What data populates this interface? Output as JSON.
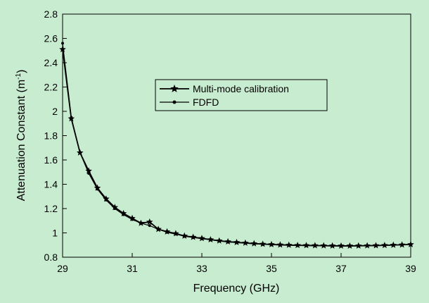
{
  "chart_data": {
    "type": "line",
    "title": "",
    "xlabel": "Frequency (GHz)",
    "ylabel": "Attenuation Constant (m",
    "ylabel_superscript": "-1",
    "ylabel_suffix": ")",
    "xlim": [
      29,
      39
    ],
    "ylim": [
      0.8,
      2.8
    ],
    "xticks": [
      29,
      31,
      33,
      35,
      37,
      39
    ],
    "yticks": [
      0.8,
      1,
      1.2,
      1.4,
      1.6,
      1.8,
      2,
      2.2,
      2.4,
      2.6,
      2.8
    ],
    "grid": false,
    "legend_position": "center",
    "series": [
      {
        "name": "Multi-mode calibration",
        "marker": "star",
        "x": [
          29.0,
          29.25,
          29.5,
          29.75,
          30.0,
          30.25,
          30.5,
          30.75,
          31.0,
          31.25,
          31.5,
          31.75,
          32.0,
          32.25,
          32.5,
          32.75,
          33.0,
          33.25,
          33.5,
          33.75,
          34.0,
          34.25,
          34.5,
          34.75,
          35.0,
          35.25,
          35.5,
          35.75,
          36.0,
          36.25,
          36.5,
          36.75,
          37.0,
          37.25,
          37.5,
          37.75,
          38.0,
          38.25,
          38.5,
          38.75,
          39.0
        ],
        "y": [
          2.51,
          1.94,
          1.66,
          1.51,
          1.37,
          1.28,
          1.21,
          1.16,
          1.12,
          1.08,
          1.09,
          1.03,
          1.01,
          0.995,
          0.975,
          0.965,
          0.955,
          0.945,
          0.935,
          0.928,
          0.922,
          0.917,
          0.912,
          0.908,
          0.905,
          0.902,
          0.9,
          0.898,
          0.897,
          0.896,
          0.895,
          0.894,
          0.893,
          0.893,
          0.894,
          0.895,
          0.896,
          0.898,
          0.9,
          0.902,
          0.905
        ]
      },
      {
        "name": "FDFD",
        "marker": "dot",
        "x": [
          29.0,
          29.25,
          29.5,
          29.75,
          30.0,
          30.25,
          30.5,
          30.75,
          31.0,
          31.25,
          31.5,
          31.75,
          32.0,
          32.25,
          32.5,
          32.75,
          33.0,
          33.25,
          33.5,
          33.75,
          34.0,
          34.25,
          34.5,
          34.75,
          35.0,
          35.25,
          35.5,
          35.75,
          36.0,
          36.25,
          36.5,
          36.75,
          37.0,
          37.25,
          37.5,
          37.75,
          38.0,
          38.25,
          38.5,
          38.75,
          39.0
        ],
        "y": [
          2.56,
          1.95,
          1.66,
          1.49,
          1.36,
          1.27,
          1.2,
          1.15,
          1.11,
          1.08,
          1.06,
          1.03,
          1.005,
          0.99,
          0.972,
          0.962,
          0.952,
          0.943,
          0.933,
          0.925,
          0.92,
          0.915,
          0.91,
          0.906,
          0.903,
          0.9,
          0.898,
          0.896,
          0.895,
          0.894,
          0.893,
          0.892,
          0.892,
          0.892,
          0.893,
          0.894,
          0.895,
          0.897,
          0.899,
          0.901,
          0.904
        ]
      }
    ]
  },
  "colors": {
    "background": "#c8ecd0",
    "plot_area": "#c8ecd0",
    "line": "#000000"
  }
}
